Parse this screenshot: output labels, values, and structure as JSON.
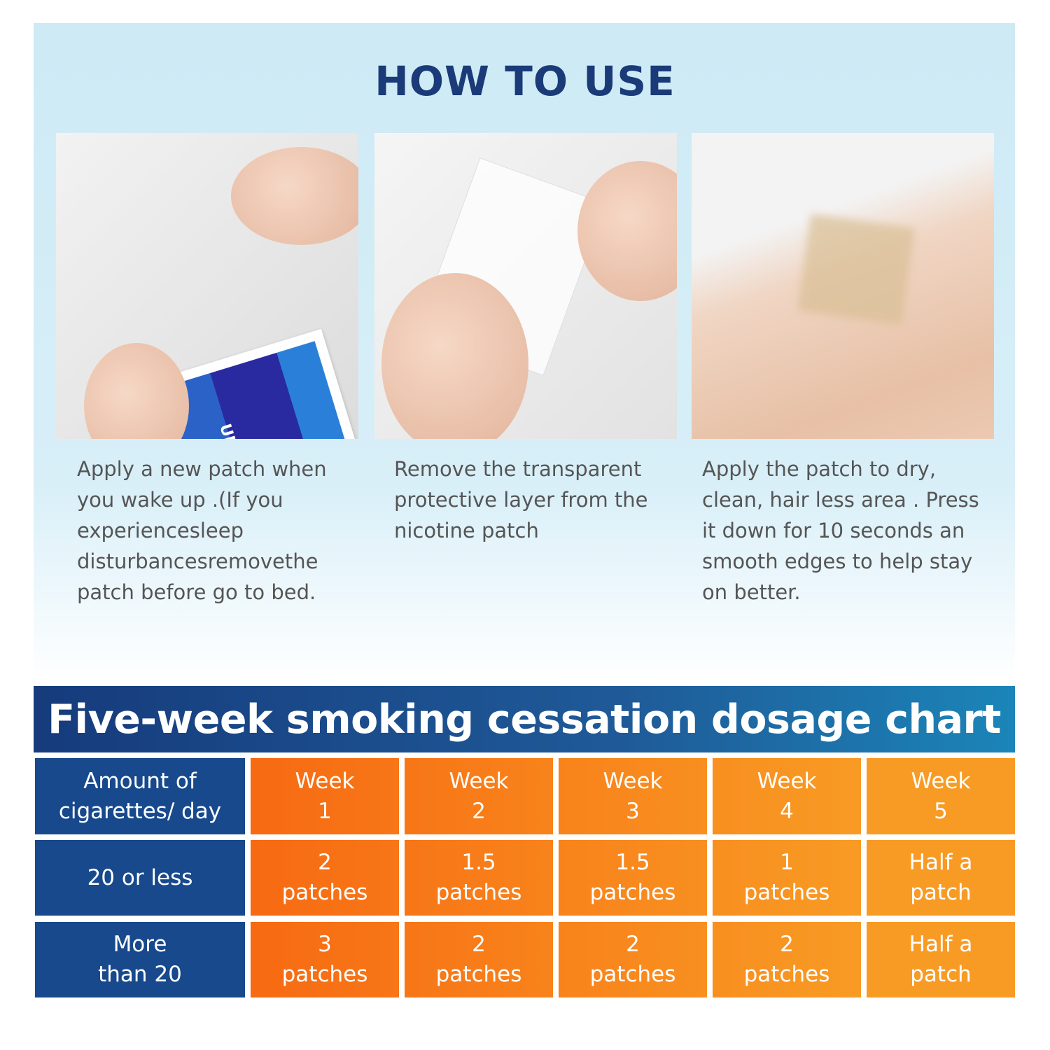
{
  "title": "HOW TO USE",
  "steps": [
    {
      "caption": "Apply a new patch when you wake up .(If you experiencesleep disturbancesremovethe patch before go to bed.",
      "packet_text": "UIT SMOKING"
    },
    {
      "caption": "Remove the transparent protective layer from the nicotine patch"
    },
    {
      "caption": "Apply the patch to dry, clean, hair less area . Press it down for 10 seconds an smooth edges to help stay on better."
    }
  ],
  "dosage": {
    "title": "Five-week smoking cessation dosage chart",
    "header": [
      "Amount of\ncigarettes/ day",
      "Week\n1",
      "Week\n2",
      "Week\n3",
      "Week\n4",
      "Week\n5"
    ],
    "rows": [
      [
        "20 or less",
        "2\npatches",
        "1.5\npatches",
        "1.5\npatches",
        "1\npatches",
        "Half a\npatch"
      ],
      [
        "More\nthan 20",
        "3\npatches",
        "2\npatches",
        "2\npatches",
        "2\npatches",
        "Half a\npatch"
      ]
    ]
  },
  "colors": {
    "navy": "#17498c",
    "orange_left": "#f76a12",
    "orange_right": "#f89b24",
    "title": "#1a3a78"
  }
}
